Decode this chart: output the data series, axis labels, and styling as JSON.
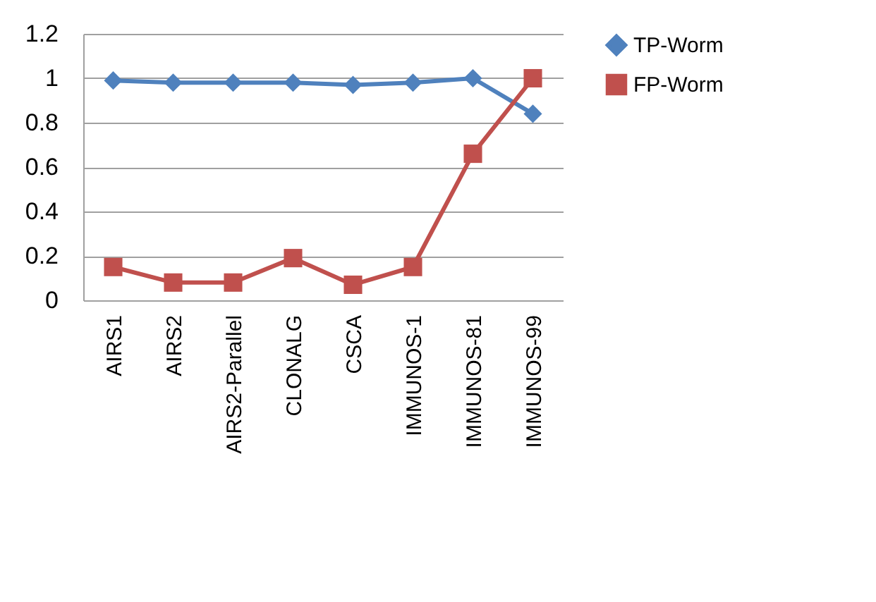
{
  "chart_data": {
    "type": "line",
    "categories": [
      "AIRS1",
      "AIRS2",
      "AIRS2-Parallel",
      "CLONALG",
      "CSCA",
      "IMMUNOS-1",
      "IMMUNOS-81",
      "IMMUNOS-99"
    ],
    "series": [
      {
        "name": "TP-Worm",
        "color": "#4f81bd",
        "marker": "diamond",
        "values": [
          0.99,
          0.98,
          0.98,
          0.98,
          0.97,
          0.98,
          1.0,
          0.84
        ]
      },
      {
        "name": "FP-Worm",
        "color": "#c0504d",
        "marker": "square",
        "values": [
          0.15,
          0.08,
          0.08,
          0.19,
          0.07,
          0.15,
          0.66,
          1.0
        ]
      }
    ],
    "ylim": [
      0,
      1.2
    ],
    "yticks": [
      0,
      0.2,
      0.4,
      0.6,
      0.8,
      1,
      1.2
    ],
    "grid": "y",
    "legend": "right",
    "line_style": "solid"
  }
}
